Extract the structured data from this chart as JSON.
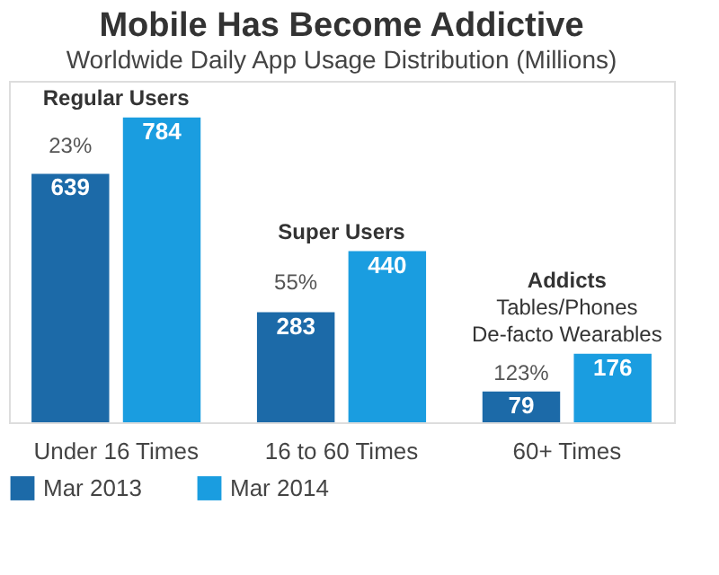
{
  "chart_data": {
    "type": "bar",
    "title": "Mobile Has Become Addictive",
    "subtitle": "Worldwide Daily App Usage Distribution (Millions)",
    "categories": [
      "Under 16 Times",
      "16 to 60 Times",
      "60+ Times"
    ],
    "series": [
      {
        "name": "Mar 2013",
        "color": "#1c6aa8",
        "values": [
          639,
          283,
          79
        ]
      },
      {
        "name": "Mar 2014",
        "color": "#1a9de0",
        "values": [
          784,
          440,
          176
        ]
      }
    ],
    "data_labels": true,
    "legend": "bottom",
    "annotations": [
      "Regular Users",
      {
        "text": "23%",
        "x": "Under 16 Times",
        "y": 711
      },
      "Super Users",
      {
        "text": "55%",
        "x": "16 to 60 Times",
        "y": 361
      },
      "Addicts",
      "Tables/Phones",
      "De-facto Wearables",
      {
        "text": "123%",
        "x": "60+ Times",
        "y": 128
      }
    ]
  }
}
